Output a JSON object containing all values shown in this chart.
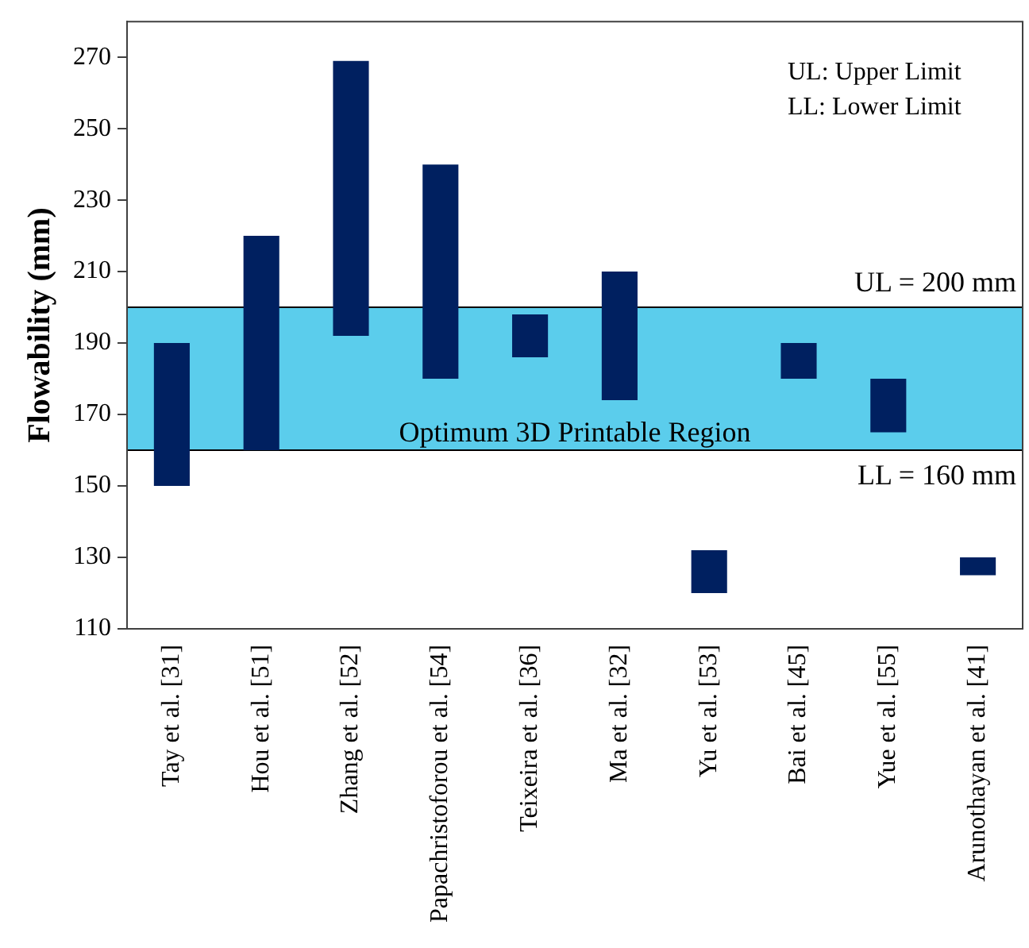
{
  "chart_data": {
    "type": "bar",
    "ylabel": "Flowability (mm)",
    "categories": [
      "Tay et al. [31]",
      "Hou et al. [51]",
      "Zhang et al. [52]",
      "Papachristoforou et al. [54]",
      "Teixeira et al. [36]",
      "Ma et al. [32]",
      "Yu et al. [53]",
      "Bai et al. [45]",
      "Yue et al. [55]",
      "Arunothayan et al. [41]"
    ],
    "base": [
      150,
      160,
      192,
      180,
      186,
      174,
      120,
      180,
      165,
      125
    ],
    "values": [
      40,
      60,
      77,
      60,
      12,
      36,
      12,
      10,
      15,
      5
    ],
    "color": "#002060",
    "ylim": [
      110,
      280
    ],
    "yticks": [
      110,
      130,
      150,
      170,
      190,
      210,
      230,
      250,
      270
    ],
    "grid": false,
    "legend": false,
    "bands": [
      {
        "axis": "y",
        "from": 160,
        "to": 200,
        "label": "Optimum 3D Printable Region",
        "color": "#5bcdec"
      }
    ],
    "ref_lines": [
      {
        "axis": "y",
        "value": 200,
        "label": "UL = 200 mm"
      },
      {
        "axis": "y",
        "value": 160,
        "label": "LL = 160 mm"
      }
    ],
    "annotations": [
      "UL: Upper Limit",
      "LL: Lower Limit"
    ]
  }
}
